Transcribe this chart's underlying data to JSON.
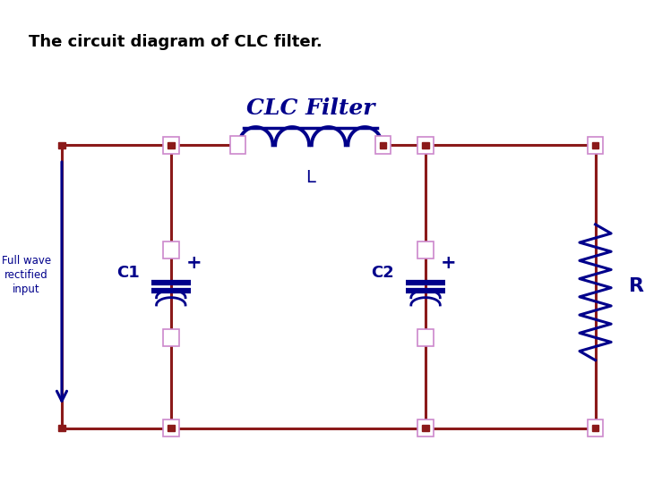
{
  "title": "The circuit diagram of CLC filter.",
  "clc_filter_label": "CLC Filter",
  "bg_color": "#ffffff",
  "diagram_bg": "#fffef0",
  "wire_color": "#8B1A1A",
  "component_color": "#00008B",
  "dot_color": "#8B1A1A",
  "text_color": "#00008B",
  "title_color": "#000000",
  "node_box_color": "#cc88cc",
  "L_label": "L",
  "C1_label": "C1",
  "C2_label": "C2",
  "RL_label": "R",
  "L_sub": "L",
  "input_label": "Full wave\nrectified\ninput"
}
